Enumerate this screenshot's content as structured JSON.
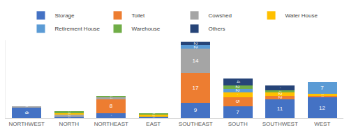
{
  "chart_data": {
    "type": "bar",
    "stacked": true,
    "data_labels": true,
    "legend": "top",
    "grid": false,
    "tick_labels": "x",
    "categories": [
      "NORTHWEST",
      "NORTH",
      "NORTHEAST",
      "EAST",
      "SOUTHEAST",
      "SOUTH",
      "SOUTHWEST",
      "WEST"
    ],
    "ylim": [
      0,
      45
    ],
    "series": [
      {
        "name": "Storage",
        "color": "#4472C4",
        "values": [
          6,
          1,
          3,
          1,
          9,
          7,
          11,
          12
        ]
      },
      {
        "name": "Toilet",
        "color": "#ED7D31",
        "values": [
          null,
          null,
          8,
          null,
          17,
          5,
          2,
          1
        ]
      },
      {
        "name": "Cowshed",
        "color": "#A5A5A5",
        "values": [
          1,
          1,
          1,
          null,
          14,
          null,
          null,
          null
        ]
      },
      {
        "name": "Water House",
        "color": "#FFC000",
        "values": [
          null,
          1,
          null,
          1,
          null,
          3,
          2,
          1
        ]
      },
      {
        "name": "Retirement House",
        "color": "#5B9BD5",
        "values": [
          null,
          null,
          null,
          null,
          2,
          2,
          null,
          7
        ]
      },
      {
        "name": "Warehouse",
        "color": "#70AD47",
        "values": [
          null,
          1,
          1,
          1,
          null,
          2,
          1,
          null
        ]
      },
      {
        "name": "Others",
        "color": "#264478",
        "values": [
          null,
          null,
          null,
          null,
          2,
          4,
          3,
          null
        ]
      }
    ]
  }
}
